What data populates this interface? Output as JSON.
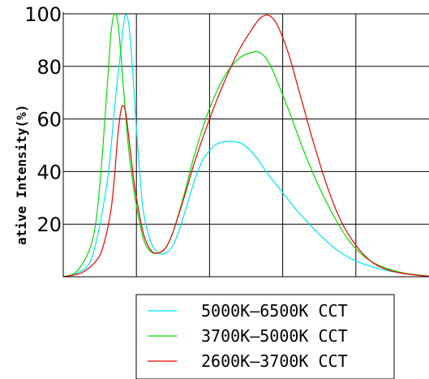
{
  "chart_data": {
    "type": "line",
    "title": "",
    "xlabel": "",
    "ylabel": "ative Intensity(%)",
    "ylim": [
      0,
      100
    ],
    "xlim": [
      0,
      100
    ],
    "y_ticks": [
      "20",
      "40",
      "60",
      "80",
      "100"
    ],
    "grid": true,
    "legend_position": "bottom",
    "series": [
      {
        "name": "5000K—6500K CCT",
        "color": "#00e5ee",
        "x": [
          0,
          4,
          8,
          12,
          14,
          16,
          17,
          18,
          19,
          20,
          21,
          22,
          24,
          26,
          28,
          30,
          32,
          34,
          36,
          38,
          40,
          42,
          45,
          48,
          50,
          53,
          56,
          60,
          64,
          68,
          72,
          76,
          80,
          84,
          88,
          92,
          96,
          100
        ],
        "y": [
          0,
          1.5,
          8,
          36,
          64,
          90,
          99.5,
          95,
          78,
          56,
          38,
          24,
          13,
          9,
          9,
          12,
          19,
          28,
          37,
          44,
          48,
          50.5,
          51.5,
          51,
          49.5,
          45,
          39,
          32,
          25,
          19,
          13.5,
          9,
          6,
          4,
          2.5,
          1.5,
          0.8,
          0.2
        ]
      },
      {
        "name": "3700K—5000K CCT",
        "color": "#00dd00",
        "x": [
          0,
          4,
          8,
          10,
          12,
          13,
          14,
          15,
          16,
          17,
          18,
          19,
          20,
          22,
          24,
          26,
          28,
          30,
          33,
          36,
          40,
          44,
          48,
          52,
          54,
          56,
          58,
          62,
          66,
          70,
          74,
          78,
          82,
          86,
          90,
          94,
          100
        ],
        "y": [
          0,
          2.5,
          14,
          35,
          72,
          92,
          100,
          96,
          80,
          62,
          47,
          36,
          27,
          14,
          9.5,
          9,
          11,
          17,
          31,
          47,
          64,
          76,
          83,
          85.5,
          85,
          82,
          76,
          62,
          47,
          34,
          23,
          14,
          8,
          4.5,
          2.5,
          1.2,
          0.2
        ]
      },
      {
        "name": "2600K—3700K CCT",
        "color": "#ee0000",
        "x": [
          0,
          5,
          9,
          11,
          13,
          14,
          15,
          16,
          17,
          18,
          19,
          20,
          22,
          24,
          26,
          28,
          30,
          33,
          36,
          40,
          44,
          48,
          52,
          54,
          56,
          58,
          60,
          62,
          64,
          66,
          68,
          72,
          76,
          80,
          84,
          88,
          92,
          96,
          100
        ],
        "y": [
          0,
          1.5,
          6,
          12,
          25,
          38,
          55,
          64.5,
          63,
          52,
          40,
          30,
          16,
          10,
          9,
          11,
          17,
          30,
          44,
          60,
          74,
          86,
          95,
          98.5,
          99.5,
          97,
          91,
          83,
          73,
          63,
          53,
          35,
          21,
          12,
          6,
          3,
          1.5,
          0.7,
          0.2
        ]
      }
    ]
  },
  "legend": {
    "items": [
      {
        "label": "5000K—6500K CCT",
        "color": "#00e5ee"
      },
      {
        "label": "3700K—5000K CCT",
        "color": "#00dd00"
      },
      {
        "label": "2600K—3700K CCT",
        "color": "#ee0000"
      }
    ]
  }
}
